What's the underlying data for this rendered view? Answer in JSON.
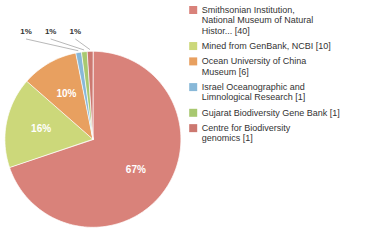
{
  "chart_data": {
    "type": "pie",
    "categories": [
      "Smithsonian Institution,\nNational Museum of Natural\nHistor... [40]",
      "Mined from GenBank, NCBI [10]",
      "Ocean University of China\nMuseum [6]",
      "Israel Oceanographic and\nLimnological Research [1]",
      "Gujarat Biodiversity Gene Bank [1]",
      "Centre for Biodiversity\ngenomics [1]"
    ],
    "values": [
      67,
      16,
      10,
      1,
      1,
      1
    ],
    "value_labels": [
      "67%",
      "16%",
      "10%",
      "1%",
      "1%",
      "1%"
    ],
    "colors": [
      "#d9827a",
      "#ccd87a",
      "#e8a060",
      "#88b8d8",
      "#a8c870",
      "#cc7870"
    ],
    "data_labels": true,
    "legend": "right"
  }
}
